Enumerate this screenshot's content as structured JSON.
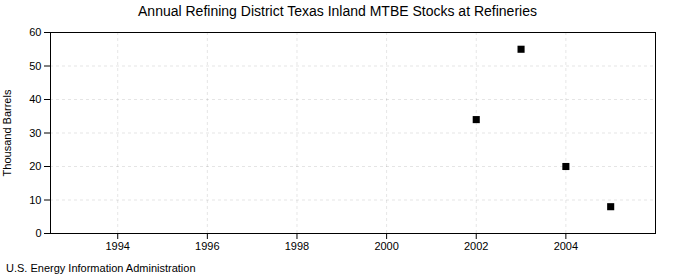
{
  "chart_data": {
    "type": "scatter",
    "title": "Annual Refining District Texas Inland MTBE Stocks at Refineries",
    "ylabel": "Thousand Barrels",
    "source": "U.S. Energy Information Administration",
    "x": [
      2002,
      2003,
      2004,
      2005
    ],
    "values": [
      34,
      55,
      20,
      8
    ],
    "marker": "square",
    "xlim": [
      1992.5,
      2006.0
    ],
    "ylim": [
      0,
      60
    ],
    "xticks": [
      1994,
      1996,
      1998,
      2000,
      2002,
      2004
    ],
    "yticks": [
      0,
      10,
      20,
      30,
      40,
      50,
      60
    ],
    "grid": true
  }
}
